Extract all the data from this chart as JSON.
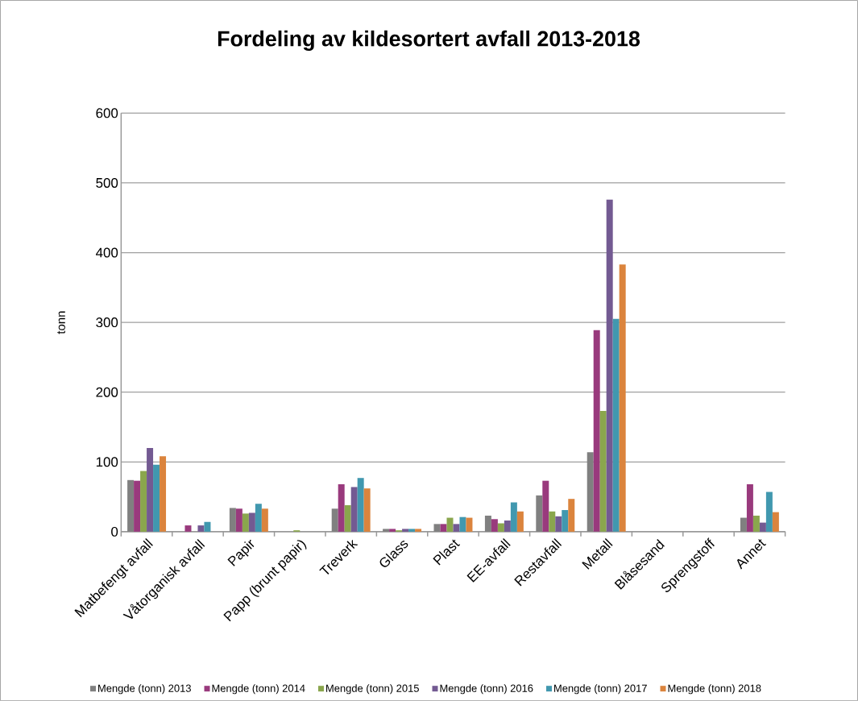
{
  "chart_data": {
    "type": "bar",
    "title": "Fordeling av kildesortert avfall 2013-2018",
    "ylabel": "tonn",
    "categories": [
      "Matbefengt avfall",
      "Våtorganisk avfall",
      "Papir",
      "Papp (brunt papir)",
      "Treverk",
      "Glass",
      "Plast",
      "EE-avfall",
      "Restavfall",
      "Metall",
      "Blåsesand",
      "Sprengstoff",
      "Annet"
    ],
    "series": [
      {
        "name": "Mengde (tonn) 2013",
        "color": "#808080",
        "values": [
          74,
          0,
          34,
          0,
          33,
          4,
          11,
          23,
          52,
          114,
          0,
          0,
          20
        ]
      },
      {
        "name": "Mengde (tonn) 2014",
        "color": "#993a7d",
        "values": [
          73,
          9,
          33,
          0,
          68,
          4,
          11,
          18,
          73,
          289,
          0,
          0,
          68
        ]
      },
      {
        "name": "Mengde (tonn) 2015",
        "color": "#8aa64d",
        "values": [
          87,
          0,
          26,
          2,
          38,
          2,
          20,
          12,
          29,
          173,
          0,
          0,
          23
        ]
      },
      {
        "name": "Mengde (tonn) 2016",
        "color": "#735a92",
        "values": [
          120,
          9,
          27,
          0,
          64,
          4,
          11,
          16,
          22,
          476,
          0,
          0,
          13
        ]
      },
      {
        "name": "Mengde (tonn) 2017",
        "color": "#4198af",
        "values": [
          96,
          14,
          40,
          0,
          77,
          4,
          21,
          42,
          31,
          305,
          0,
          0,
          57
        ]
      },
      {
        "name": "Mengde (tonn) 2018",
        "color": "#db843d",
        "values": [
          108,
          0,
          33,
          0,
          62,
          4,
          20,
          29,
          47,
          383,
          0,
          0,
          28
        ]
      }
    ],
    "ylim": [
      0,
      600
    ],
    "yticks": [
      0,
      100,
      200,
      300,
      400,
      500,
      600
    ],
    "grid": "y",
    "legend": "bottom"
  }
}
